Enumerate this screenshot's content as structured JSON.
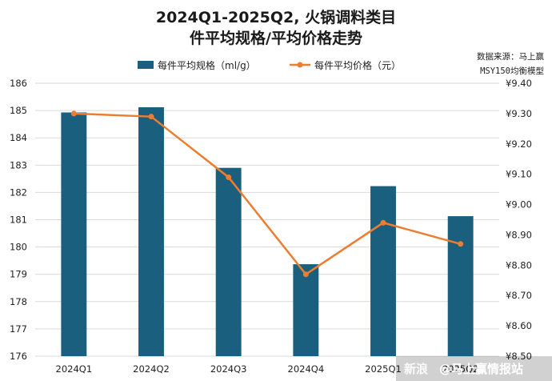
{
  "chart_data": {
    "type": "bar+line",
    "title_lines": [
      "2024Q1-2025Q2, 火锅调料类目",
      "件平均规格/平均价格走势"
    ],
    "categories": [
      "2024Q1",
      "2024Q2",
      "2024Q3",
      "2024Q4",
      "2025Q1",
      "2025Q2"
    ],
    "series": [
      {
        "name": "每件平均规格（ml/g）",
        "kind": "bar",
        "axis": "left",
        "color": "#1b5f7e",
        "values": [
          184.93,
          185.12,
          182.9,
          179.37,
          182.23,
          181.13
        ]
      },
      {
        "name": "每件平均价格（元）",
        "kind": "line",
        "axis": "right",
        "color": "#ed7d31",
        "values": [
          9.3,
          9.29,
          9.09,
          8.77,
          8.94,
          8.87
        ]
      }
    ],
    "y_left": {
      "min": 176,
      "max": 186,
      "step": 1
    },
    "y_right": {
      "min": 8.5,
      "max": 9.4,
      "step": 0.1,
      "tick_labels": [
        "¥8.50",
        "¥8.60",
        "¥8.70",
        "¥8.80",
        "¥8.90",
        "¥9.00",
        "¥9.10",
        "¥9.20",
        "¥9.30",
        "¥9.40"
      ]
    },
    "grid": true,
    "legend_position": "top"
  },
  "source_note": [
    "数据来源：马上赢",
    "MSY150均衡模型"
  ],
  "watermark": {
    "platform": "新浪",
    "text": "@马上赢情报站"
  }
}
